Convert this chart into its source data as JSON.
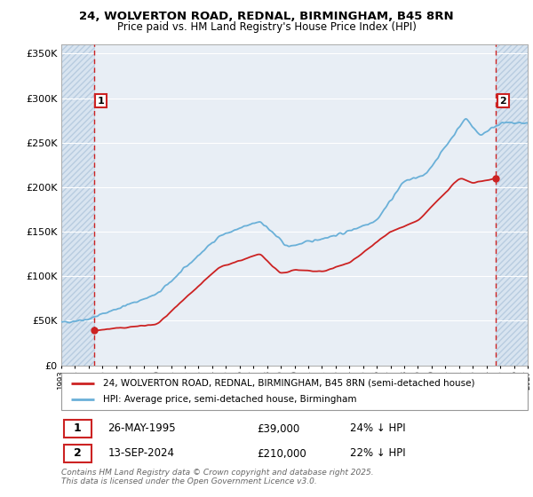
{
  "title_line1": "24, WOLVERTON ROAD, REDNAL, BIRMINGHAM, B45 8RN",
  "title_line2": "Price paid vs. HM Land Registry's House Price Index (HPI)",
  "background_color": "#ffffff",
  "plot_bg_color": "#e8eef5",
  "hatch_bg_color": "#dce6f0",
  "grid_color": "#ffffff",
  "line_color_hpi": "#6ab0d8",
  "line_color_price": "#cc2222",
  "annotation_box_color": "#cc2222",
  "dashed_line_color": "#cc2222",
  "point1_x": 1995.4,
  "point1_y": 39000,
  "point1_label": "1",
  "point2_x": 2024.7,
  "point2_y": 210000,
  "point2_label": "2",
  "ylim_min": 0,
  "ylim_max": 360000,
  "xlim_min": 1993,
  "xlim_max": 2027,
  "legend_line1": "24, WOLVERTON ROAD, REDNAL, BIRMINGHAM, B45 8RN (semi-detached house)",
  "legend_line2": "HPI: Average price, semi-detached house, Birmingham",
  "note1_label": "1",
  "note1_date": "26-MAY-1995",
  "note1_price": "£39,000",
  "note1_hpi": "24% ↓ HPI",
  "note2_label": "2",
  "note2_date": "13-SEP-2024",
  "note2_price": "£210,000",
  "note2_hpi": "22% ↓ HPI",
  "footer": "Contains HM Land Registry data © Crown copyright and database right 2025.\nThis data is licensed under the Open Government Licence v3.0.",
  "yticks": [
    0,
    50000,
    100000,
    150000,
    200000,
    250000,
    300000,
    350000
  ],
  "ytick_labels": [
    "£0",
    "£50K",
    "£100K",
    "£150K",
    "£200K",
    "£250K",
    "£300K",
    "£350K"
  ]
}
